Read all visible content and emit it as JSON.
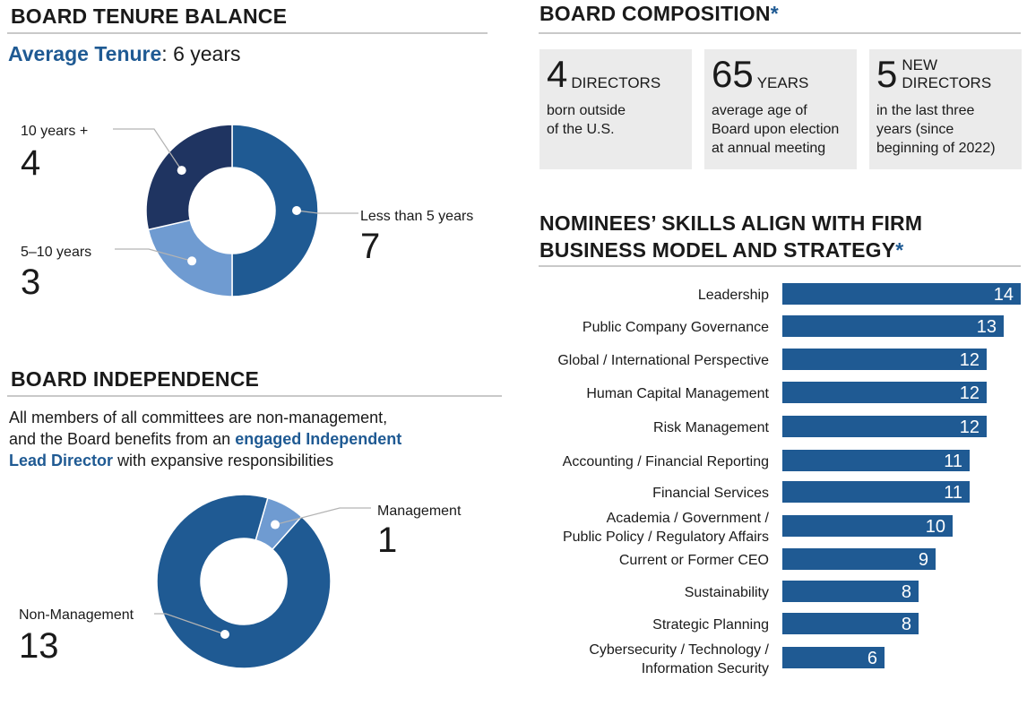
{
  "tenure": {
    "heading": "BOARD TENURE BALANCE",
    "avg_label": "Average Tenure",
    "avg_sep": ":",
    "avg_value": "6 years"
  },
  "independence": {
    "heading": "BOARD INDEPENDENCE",
    "text_1": "All members of all committees are non-management,",
    "text_2a": "and the Board benefits from an",
    "text_2b": "engaged Independent",
    "text_3a": "Lead Director",
    "text_3b": "with expansive responsibilities"
  },
  "composition": {
    "heading": "BOARD COMPOSITION",
    "asterisk": "*",
    "boxes": [
      {
        "number": "4",
        "unit_1": "DIRECTORS",
        "unit_2": "",
        "desc_1": "born outside",
        "desc_2": "of the U.S.",
        "desc_3": ""
      },
      {
        "number": "65",
        "unit_1": "YEARS",
        "unit_2": "",
        "desc_1": "average age of",
        "desc_2": "Board upon election",
        "desc_3": "at annual meeting"
      },
      {
        "number": "5",
        "unit_1": "NEW",
        "unit_2": "DIRECTORS",
        "desc_1": "in the last three",
        "desc_2": "years (since",
        "desc_3": "beginning of 2022)"
      }
    ]
  },
  "skills": {
    "heading_1": "NOMINEES’ SKILLS ALIGN WITH FIRM",
    "heading_2": "BUSINESS MODEL AND STRATEGY",
    "asterisk": "*"
  },
  "colors": {
    "dark_navy": "#1f3461",
    "mid_blue": "#1f5a93",
    "light_blue": "#6f9bd1",
    "box_gray": "#ebebeb"
  },
  "chart_data": [
    {
      "type": "pie",
      "style": "donut",
      "title": "Board Tenure Balance",
      "categories": [
        "Less than 5 years",
        "5–10 years",
        "10 years +"
      ],
      "values": [
        7,
        3,
        4
      ]
    },
    {
      "type": "pie",
      "style": "donut",
      "title": "Board Independence",
      "categories": [
        "Management",
        "Non-Management"
      ],
      "values": [
        1,
        13
      ]
    },
    {
      "type": "bar",
      "orientation": "horizontal",
      "title": "Nominees’ Skills Align with Firm Business Model and Strategy",
      "categories": [
        [
          "Leadership"
        ],
        [
          "Public Company Governance"
        ],
        [
          "Global / International Perspective"
        ],
        [
          "Human Capital Management"
        ],
        [
          "Risk Management"
        ],
        [
          "Accounting / Financial Reporting"
        ],
        [
          "Financial Services"
        ],
        [
          "Academia / Government /",
          "Public Policy / Regulatory Affairs"
        ],
        [
          "Current or Former CEO"
        ],
        [
          "Sustainability"
        ],
        [
          "Strategic Planning"
        ],
        [
          "Cybersecurity / Technology /",
          "Information Security"
        ]
      ],
      "values": [
        14,
        13,
        12,
        12,
        12,
        11,
        11,
        10,
        9,
        8,
        8,
        6
      ],
      "xlim": [
        0,
        14
      ]
    }
  ]
}
